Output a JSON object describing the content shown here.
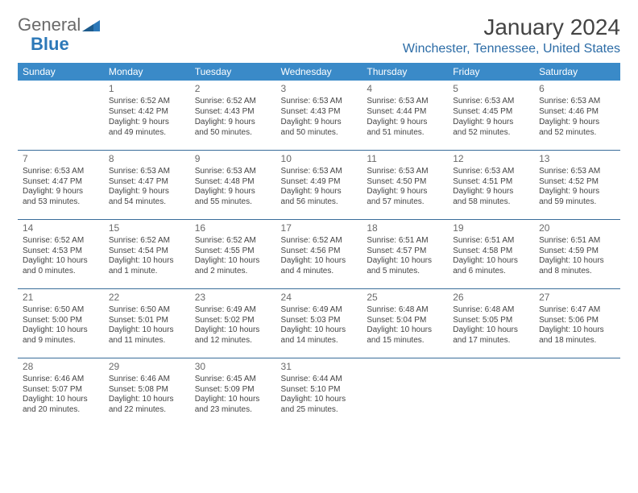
{
  "brand": {
    "part1": "General",
    "part2": "Blue"
  },
  "title": "January 2024",
  "location": "Winchester, Tennessee, United States",
  "colors": {
    "header_bg": "#3a8ac8",
    "header_text": "#ffffff",
    "divider": "#3a6d9a",
    "location_text": "#2c6ca6",
    "body_text": "#444444",
    "daynum_text": "#6a6a6a",
    "brand_gray": "#6a6a6a",
    "brand_blue": "#2c78b8",
    "page_bg": "#ffffff"
  },
  "typography": {
    "title_fontsize": 28,
    "location_fontsize": 16,
    "weekday_fontsize": 12,
    "daynum_fontsize": 12,
    "body_fontsize": 10,
    "font_family": "Arial"
  },
  "layout": {
    "columns": 7,
    "rows": 5,
    "first_day_column_index": 1
  },
  "weekdays": [
    "Sunday",
    "Monday",
    "Tuesday",
    "Wednesday",
    "Thursday",
    "Friday",
    "Saturday"
  ],
  "days": [
    {
      "n": "1",
      "sunrise": "Sunrise: 6:52 AM",
      "sunset": "Sunset: 4:42 PM",
      "day1": "Daylight: 9 hours",
      "day2": "and 49 minutes."
    },
    {
      "n": "2",
      "sunrise": "Sunrise: 6:52 AM",
      "sunset": "Sunset: 4:43 PM",
      "day1": "Daylight: 9 hours",
      "day2": "and 50 minutes."
    },
    {
      "n": "3",
      "sunrise": "Sunrise: 6:53 AM",
      "sunset": "Sunset: 4:43 PM",
      "day1": "Daylight: 9 hours",
      "day2": "and 50 minutes."
    },
    {
      "n": "4",
      "sunrise": "Sunrise: 6:53 AM",
      "sunset": "Sunset: 4:44 PM",
      "day1": "Daylight: 9 hours",
      "day2": "and 51 minutes."
    },
    {
      "n": "5",
      "sunrise": "Sunrise: 6:53 AM",
      "sunset": "Sunset: 4:45 PM",
      "day1": "Daylight: 9 hours",
      "day2": "and 52 minutes."
    },
    {
      "n": "6",
      "sunrise": "Sunrise: 6:53 AM",
      "sunset": "Sunset: 4:46 PM",
      "day1": "Daylight: 9 hours",
      "day2": "and 52 minutes."
    },
    {
      "n": "7",
      "sunrise": "Sunrise: 6:53 AM",
      "sunset": "Sunset: 4:47 PM",
      "day1": "Daylight: 9 hours",
      "day2": "and 53 minutes."
    },
    {
      "n": "8",
      "sunrise": "Sunrise: 6:53 AM",
      "sunset": "Sunset: 4:47 PM",
      "day1": "Daylight: 9 hours",
      "day2": "and 54 minutes."
    },
    {
      "n": "9",
      "sunrise": "Sunrise: 6:53 AM",
      "sunset": "Sunset: 4:48 PM",
      "day1": "Daylight: 9 hours",
      "day2": "and 55 minutes."
    },
    {
      "n": "10",
      "sunrise": "Sunrise: 6:53 AM",
      "sunset": "Sunset: 4:49 PM",
      "day1": "Daylight: 9 hours",
      "day2": "and 56 minutes."
    },
    {
      "n": "11",
      "sunrise": "Sunrise: 6:53 AM",
      "sunset": "Sunset: 4:50 PM",
      "day1": "Daylight: 9 hours",
      "day2": "and 57 minutes."
    },
    {
      "n": "12",
      "sunrise": "Sunrise: 6:53 AM",
      "sunset": "Sunset: 4:51 PM",
      "day1": "Daylight: 9 hours",
      "day2": "and 58 minutes."
    },
    {
      "n": "13",
      "sunrise": "Sunrise: 6:53 AM",
      "sunset": "Sunset: 4:52 PM",
      "day1": "Daylight: 9 hours",
      "day2": "and 59 minutes."
    },
    {
      "n": "14",
      "sunrise": "Sunrise: 6:52 AM",
      "sunset": "Sunset: 4:53 PM",
      "day1": "Daylight: 10 hours",
      "day2": "and 0 minutes."
    },
    {
      "n": "15",
      "sunrise": "Sunrise: 6:52 AM",
      "sunset": "Sunset: 4:54 PM",
      "day1": "Daylight: 10 hours",
      "day2": "and 1 minute."
    },
    {
      "n": "16",
      "sunrise": "Sunrise: 6:52 AM",
      "sunset": "Sunset: 4:55 PM",
      "day1": "Daylight: 10 hours",
      "day2": "and 2 minutes."
    },
    {
      "n": "17",
      "sunrise": "Sunrise: 6:52 AM",
      "sunset": "Sunset: 4:56 PM",
      "day1": "Daylight: 10 hours",
      "day2": "and 4 minutes."
    },
    {
      "n": "18",
      "sunrise": "Sunrise: 6:51 AM",
      "sunset": "Sunset: 4:57 PM",
      "day1": "Daylight: 10 hours",
      "day2": "and 5 minutes."
    },
    {
      "n": "19",
      "sunrise": "Sunrise: 6:51 AM",
      "sunset": "Sunset: 4:58 PM",
      "day1": "Daylight: 10 hours",
      "day2": "and 6 minutes."
    },
    {
      "n": "20",
      "sunrise": "Sunrise: 6:51 AM",
      "sunset": "Sunset: 4:59 PM",
      "day1": "Daylight: 10 hours",
      "day2": "and 8 minutes."
    },
    {
      "n": "21",
      "sunrise": "Sunrise: 6:50 AM",
      "sunset": "Sunset: 5:00 PM",
      "day1": "Daylight: 10 hours",
      "day2": "and 9 minutes."
    },
    {
      "n": "22",
      "sunrise": "Sunrise: 6:50 AM",
      "sunset": "Sunset: 5:01 PM",
      "day1": "Daylight: 10 hours",
      "day2": "and 11 minutes."
    },
    {
      "n": "23",
      "sunrise": "Sunrise: 6:49 AM",
      "sunset": "Sunset: 5:02 PM",
      "day1": "Daylight: 10 hours",
      "day2": "and 12 minutes."
    },
    {
      "n": "24",
      "sunrise": "Sunrise: 6:49 AM",
      "sunset": "Sunset: 5:03 PM",
      "day1": "Daylight: 10 hours",
      "day2": "and 14 minutes."
    },
    {
      "n": "25",
      "sunrise": "Sunrise: 6:48 AM",
      "sunset": "Sunset: 5:04 PM",
      "day1": "Daylight: 10 hours",
      "day2": "and 15 minutes."
    },
    {
      "n": "26",
      "sunrise": "Sunrise: 6:48 AM",
      "sunset": "Sunset: 5:05 PM",
      "day1": "Daylight: 10 hours",
      "day2": "and 17 minutes."
    },
    {
      "n": "27",
      "sunrise": "Sunrise: 6:47 AM",
      "sunset": "Sunset: 5:06 PM",
      "day1": "Daylight: 10 hours",
      "day2": "and 18 minutes."
    },
    {
      "n": "28",
      "sunrise": "Sunrise: 6:46 AM",
      "sunset": "Sunset: 5:07 PM",
      "day1": "Daylight: 10 hours",
      "day2": "and 20 minutes."
    },
    {
      "n": "29",
      "sunrise": "Sunrise: 6:46 AM",
      "sunset": "Sunset: 5:08 PM",
      "day1": "Daylight: 10 hours",
      "day2": "and 22 minutes."
    },
    {
      "n": "30",
      "sunrise": "Sunrise: 6:45 AM",
      "sunset": "Sunset: 5:09 PM",
      "day1": "Daylight: 10 hours",
      "day2": "and 23 minutes."
    },
    {
      "n": "31",
      "sunrise": "Sunrise: 6:44 AM",
      "sunset": "Sunset: 5:10 PM",
      "day1": "Daylight: 10 hours",
      "day2": "and 25 minutes."
    }
  ]
}
